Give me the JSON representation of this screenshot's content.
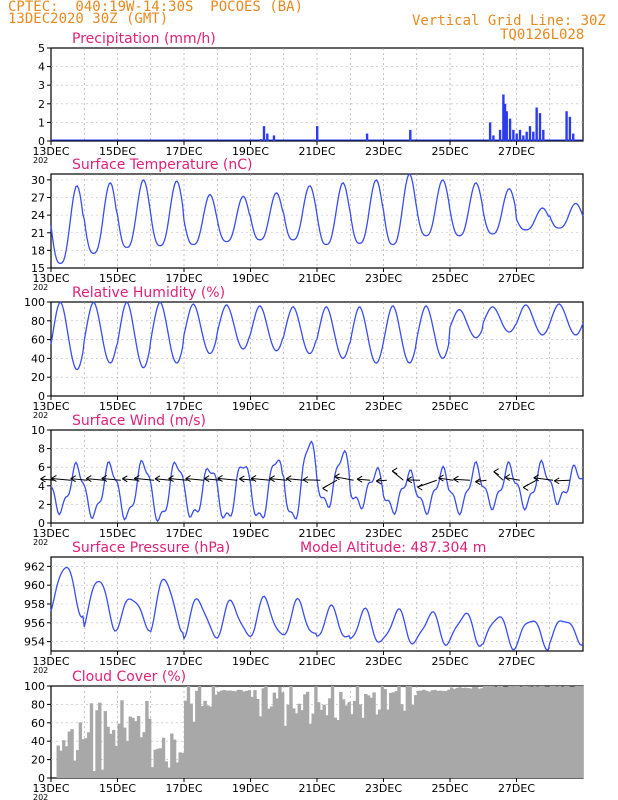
{
  "header": {
    "line1": "CPTEC:  040:19W-14:30S  POCOES (BA)",
    "line2": "13DEC2020 30Z (GMT)",
    "grid_note": "Vertical Grid Line: 30Z",
    "code": "TQ0126L028",
    "year_stub": "202"
  },
  "colors": {
    "line": "#3a4ef0",
    "bar": "#2a3bf0",
    "cloud": "#a8a8a8",
    "title": "#e0217a",
    "header": "#e8891e"
  },
  "x_ticks": [
    "13DEC",
    "15DEC",
    "17DEC",
    "19DEC",
    "21DEC",
    "23DEC",
    "25DEC",
    "27DEC"
  ],
  "chart_data": [
    {
      "id": "precip",
      "type": "bar",
      "title": "Precipitation (mm/h)",
      "ylim": [
        0,
        5
      ],
      "yticks": [
        "0",
        "1",
        "2",
        "3",
        "4",
        "5"
      ],
      "x_range_days": [
        0,
        16
      ],
      "bars": [
        [
          6.3,
          0.1
        ],
        [
          6.4,
          0.8
        ],
        [
          6.5,
          0.4
        ],
        [
          6.7,
          0.3
        ],
        [
          8.0,
          0.8
        ],
        [
          9.5,
          0.4
        ],
        [
          10.8,
          0.6
        ],
        [
          13.2,
          1.0
        ],
        [
          13.3,
          0.3
        ],
        [
          13.5,
          0.6
        ],
        [
          13.6,
          2.5
        ],
        [
          13.65,
          2.0
        ],
        [
          13.7,
          1.6
        ],
        [
          13.8,
          1.2
        ],
        [
          13.9,
          0.6
        ],
        [
          14.0,
          0.4
        ],
        [
          14.1,
          0.6
        ],
        [
          14.2,
          0.3
        ],
        [
          14.3,
          0.5
        ],
        [
          14.4,
          0.8
        ],
        [
          14.5,
          0.5
        ],
        [
          14.6,
          1.8
        ],
        [
          14.7,
          1.5
        ],
        [
          14.8,
          0.6
        ],
        [
          15.5,
          1.6
        ],
        [
          15.6,
          1.3
        ],
        [
          15.7,
          0.4
        ]
      ]
    },
    {
      "id": "temp",
      "type": "line",
      "title": "Surface Temperature (nC)",
      "ylim": [
        15,
        31
      ],
      "yticks": [
        "15",
        "18",
        "21",
        "24",
        "27",
        "30"
      ],
      "x_range_days": [
        0,
        16
      ],
      "daily_min": [
        15.8,
        17.5,
        18.5,
        18.8,
        19.0,
        19.5,
        19.8,
        19.8,
        19.0,
        19.2,
        19.0,
        20.5,
        20.5,
        20.8,
        21.5,
        21.8
      ],
      "daily_max": [
        29.0,
        29.5,
        30.0,
        29.8,
        27.5,
        27.2,
        27.8,
        29.0,
        29.5,
        30.0,
        31.0,
        30.0,
        29.5,
        28.5,
        25.2,
        26.0
      ]
    },
    {
      "id": "rh",
      "type": "line",
      "title": "Relative Humidity (%)",
      "ylim": [
        0,
        100
      ],
      "yticks": [
        "0",
        "20",
        "40",
        "60",
        "80",
        "100"
      ],
      "x_range_days": [
        0,
        16
      ],
      "daily_min": [
        28,
        35,
        30,
        35,
        45,
        50,
        48,
        45,
        40,
        35,
        35,
        40,
        62,
        68,
        65,
        65
      ],
      "daily_max": [
        100,
        100,
        100,
        100,
        98,
        97,
        96,
        95,
        95,
        95,
        96,
        96,
        92,
        95,
        97,
        98
      ]
    },
    {
      "id": "wind",
      "type": "line",
      "title": "Surface Wind (m/s)",
      "ylim": [
        0,
        10
      ],
      "yticks": [
        "0",
        "2",
        "4",
        "6",
        "8",
        "10"
      ],
      "x_range_days": [
        0,
        16
      ],
      "daily_min": [
        1.5,
        1.0,
        0.8,
        0.5,
        0.8,
        0.5,
        0.5,
        0.5,
        2.0,
        2.0,
        1.5,
        1.5,
        1.5,
        2.0,
        2.0,
        2.5
      ],
      "daily_max": [
        6.0,
        6.2,
        6.5,
        6.5,
        6.0,
        6.5,
        7.0,
        8.8,
        7.5,
        5.5,
        5.2,
        5.5,
        6.0,
        6.0,
        6.2,
        5.8
      ]
    },
    {
      "id": "pres",
      "type": "line",
      "title": "Surface Pressure (hPa)",
      "annotation": "Model Altitude: 487.304 m",
      "ylim": [
        953,
        963
      ],
      "yticks": [
        "954",
        "956",
        "958",
        "960",
        "962"
      ],
      "x_range_days": [
        0,
        16
      ],
      "daily_min": [
        957.0,
        955.5,
        955.5,
        955.2,
        954.5,
        954.5,
        954.5,
        954.5,
        954.2,
        953.8,
        953.8,
        953.8,
        953.8,
        953.5,
        953.5,
        954.0
      ],
      "daily_max": [
        962.2,
        960.8,
        958.8,
        960.8,
        958.5,
        958.2,
        958.5,
        958.2,
        957.5,
        957.2,
        957.2,
        957.0,
        957.0,
        956.8,
        956.5,
        956.5
      ]
    },
    {
      "id": "cloud",
      "type": "area",
      "title": "Cloud Cover (%)",
      "ylim": [
        0,
        100
      ],
      "yticks": [
        "0",
        "20",
        "40",
        "60",
        "80",
        "100"
      ],
      "x_range_days": [
        0,
        16
      ],
      "daily_mean": [
        40,
        50,
        60,
        30,
        85,
        95,
        88,
        80,
        80,
        85,
        92,
        95,
        98,
        100,
        100,
        100
      ]
    }
  ]
}
